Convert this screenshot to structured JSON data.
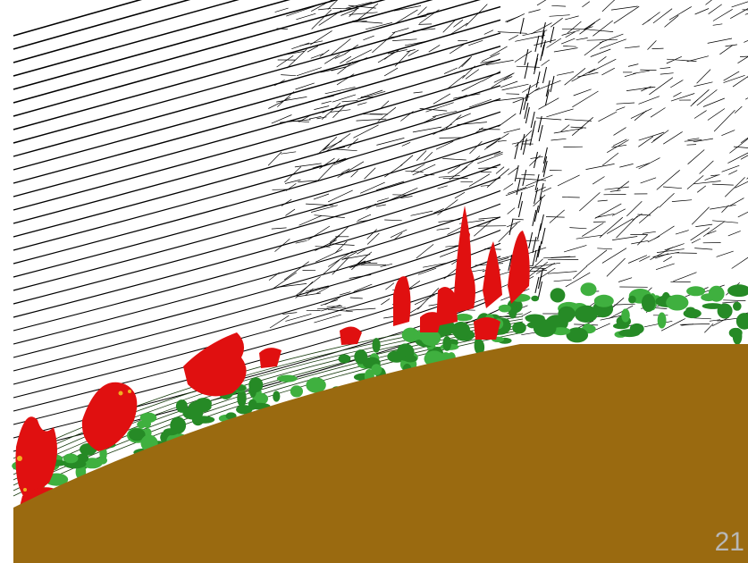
{
  "slide": {
    "number": "21"
  },
  "colors": {
    "background": "#ffffff",
    "surface": "#9a6a10",
    "vortex_red": "#e01010",
    "vortex_green": "#2b9a2b",
    "streamline": "#000000",
    "slide_number": "#b7b7b7"
  }
}
